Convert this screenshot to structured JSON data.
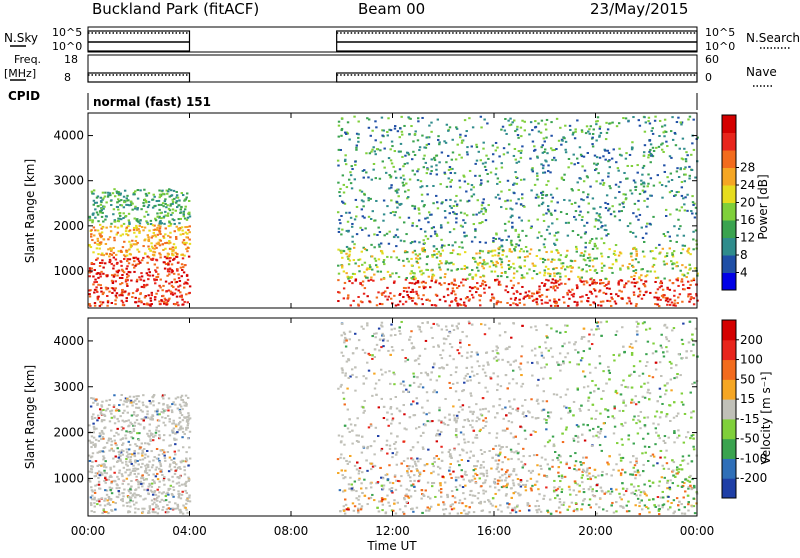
{
  "header": {
    "title": "Buckland Park (fitACF)",
    "beam": "Beam 00",
    "date": "23/May/2015"
  },
  "strips": {
    "nsky_label": "N.Sky",
    "nsearch_label": "N.Search",
    "nsky_ticks": [
      "10^5",
      "10^0"
    ],
    "nsearch_ticks": [
      "10^5",
      "10^0"
    ],
    "freq_label": "Freq.",
    "freq_unit": "[MHz]",
    "freq_ticks": [
      "18",
      "8"
    ],
    "nave_label": "Nave",
    "nave_ticks": [
      "60",
      "0"
    ],
    "cpid_label": "CPID",
    "cpid_text": "normal (fast) 151"
  },
  "chart_data": [
    {
      "type": "heatmap",
      "name": "power",
      "ylabel": "Slant Range [km]",
      "yticks": [
        1000,
        2000,
        3000,
        4000
      ],
      "ylim": [
        180,
        4500
      ],
      "xlim_hours": [
        0,
        24
      ],
      "data_gap_hours": [
        4.0,
        9.8
      ],
      "colorbar": {
        "label": "Power [dB]",
        "ticks": [
          "4",
          "8",
          "12",
          "16",
          "20",
          "24",
          "28"
        ],
        "colors": [
          "#0000e6",
          "#1f4fa6",
          "#2f8c8c",
          "#3aa34f",
          "#7fcf3a",
          "#e6dc1e",
          "#f5a623",
          "#f26b1d",
          "#e8251c",
          "#d40000"
        ]
      }
    },
    {
      "type": "heatmap",
      "name": "velocity",
      "ylabel": "Slant Range [km]",
      "yticks": [
        1000,
        2000,
        3000,
        4000
      ],
      "ylim": [
        180,
        4500
      ],
      "xlim_hours": [
        0,
        24
      ],
      "data_gap_hours": [
        4.0,
        9.8
      ],
      "colorbar": {
        "label": "Velocity [m s⁻¹]",
        "ticks": [
          "200",
          "100",
          "50",
          "15",
          "-15",
          "-50",
          "-100",
          "-200"
        ],
        "colors": [
          "#1f3fa6",
          "#2f6fb8",
          "#3aa34f",
          "#7fcf3a",
          "#c0c0b8",
          "#f5a623",
          "#f26b1d",
          "#e8251c",
          "#d40000"
        ]
      }
    }
  ],
  "xaxis": {
    "ticks": [
      "00:00",
      "04:00",
      "08:00",
      "12:00",
      "16:00",
      "20:00",
      "00:00"
    ],
    "tick_hours": [
      0,
      4,
      8,
      12,
      16,
      20,
      24
    ],
    "label": "Time UT"
  }
}
